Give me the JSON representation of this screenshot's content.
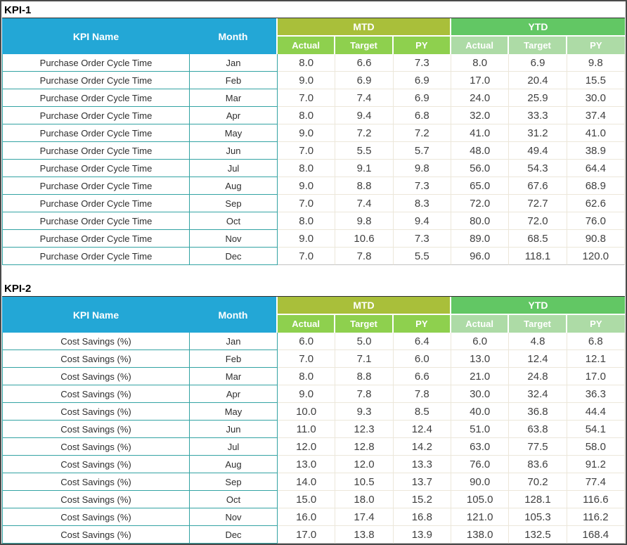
{
  "colors": {
    "header_blue": "#23a7d6",
    "mtd_group_green": "#a9bf3a",
    "mtd_sub_green": "#8ed04e",
    "ytd_group_green": "#62c764",
    "ytd_sub_green": "#addba6",
    "teal_border": "#33a3a3",
    "light_gridline": "#ece7da"
  },
  "tables": [
    {
      "title": "KPI-1",
      "columns": {
        "kpi_name": "KPI Name",
        "month": "Month"
      },
      "groups": [
        {
          "label": "MTD",
          "sub": [
            "Actual",
            "Target",
            "PY"
          ]
        },
        {
          "label": "YTD",
          "sub": [
            "Actual",
            "Target",
            "PY"
          ]
        }
      ],
      "rows": [
        {
          "kpi": "Purchase Order Cycle Time",
          "month": "Jan",
          "mtd": [
            "8.0",
            "6.6",
            "7.3"
          ],
          "ytd": [
            "8.0",
            "6.9",
            "9.8"
          ]
        },
        {
          "kpi": "Purchase Order Cycle Time",
          "month": "Feb",
          "mtd": [
            "9.0",
            "6.9",
            "6.9"
          ],
          "ytd": [
            "17.0",
            "20.4",
            "15.5"
          ]
        },
        {
          "kpi": "Purchase Order Cycle Time",
          "month": "Mar",
          "mtd": [
            "7.0",
            "7.4",
            "6.9"
          ],
          "ytd": [
            "24.0",
            "25.9",
            "30.0"
          ]
        },
        {
          "kpi": "Purchase Order Cycle Time",
          "month": "Apr",
          "mtd": [
            "8.0",
            "9.4",
            "6.8"
          ],
          "ytd": [
            "32.0",
            "33.3",
            "37.4"
          ]
        },
        {
          "kpi": "Purchase Order Cycle Time",
          "month": "May",
          "mtd": [
            "9.0",
            "7.2",
            "7.2"
          ],
          "ytd": [
            "41.0",
            "31.2",
            "41.0"
          ]
        },
        {
          "kpi": "Purchase Order Cycle Time",
          "month": "Jun",
          "mtd": [
            "7.0",
            "5.5",
            "5.7"
          ],
          "ytd": [
            "48.0",
            "49.4",
            "38.9"
          ]
        },
        {
          "kpi": "Purchase Order Cycle Time",
          "month": "Jul",
          "mtd": [
            "8.0",
            "9.1",
            "9.8"
          ],
          "ytd": [
            "56.0",
            "54.3",
            "64.4"
          ]
        },
        {
          "kpi": "Purchase Order Cycle Time",
          "month": "Aug",
          "mtd": [
            "9.0",
            "8.8",
            "7.3"
          ],
          "ytd": [
            "65.0",
            "67.6",
            "68.9"
          ]
        },
        {
          "kpi": "Purchase Order Cycle Time",
          "month": "Sep",
          "mtd": [
            "7.0",
            "7.4",
            "8.3"
          ],
          "ytd": [
            "72.0",
            "72.7",
            "62.6"
          ]
        },
        {
          "kpi": "Purchase Order Cycle Time",
          "month": "Oct",
          "mtd": [
            "8.0",
            "9.8",
            "9.4"
          ],
          "ytd": [
            "80.0",
            "72.0",
            "76.0"
          ]
        },
        {
          "kpi": "Purchase Order Cycle Time",
          "month": "Nov",
          "mtd": [
            "9.0",
            "10.6",
            "7.3"
          ],
          "ytd": [
            "89.0",
            "68.5",
            "90.8"
          ]
        },
        {
          "kpi": "Purchase Order Cycle Time",
          "month": "Dec",
          "mtd": [
            "7.0",
            "7.8",
            "5.5"
          ],
          "ytd": [
            "96.0",
            "118.1",
            "120.0"
          ]
        }
      ]
    },
    {
      "title": "KPI-2",
      "columns": {
        "kpi_name": "KPI Name",
        "month": "Month"
      },
      "groups": [
        {
          "label": "MTD",
          "sub": [
            "Actual",
            "Target",
            "PY"
          ]
        },
        {
          "label": "YTD",
          "sub": [
            "Actual",
            "Target",
            "PY"
          ]
        }
      ],
      "rows": [
        {
          "kpi": "Cost Savings (%)",
          "month": "Jan",
          "mtd": [
            "6.0",
            "5.0",
            "6.4"
          ],
          "ytd": [
            "6.0",
            "4.8",
            "6.8"
          ]
        },
        {
          "kpi": "Cost Savings (%)",
          "month": "Feb",
          "mtd": [
            "7.0",
            "7.1",
            "6.0"
          ],
          "ytd": [
            "13.0",
            "12.4",
            "12.1"
          ]
        },
        {
          "kpi": "Cost Savings (%)",
          "month": "Mar",
          "mtd": [
            "8.0",
            "8.8",
            "6.6"
          ],
          "ytd": [
            "21.0",
            "24.8",
            "17.0"
          ]
        },
        {
          "kpi": "Cost Savings (%)",
          "month": "Apr",
          "mtd": [
            "9.0",
            "7.8",
            "7.8"
          ],
          "ytd": [
            "30.0",
            "32.4",
            "36.3"
          ]
        },
        {
          "kpi": "Cost Savings (%)",
          "month": "May",
          "mtd": [
            "10.0",
            "9.3",
            "8.5"
          ],
          "ytd": [
            "40.0",
            "36.8",
            "44.4"
          ]
        },
        {
          "kpi": "Cost Savings (%)",
          "month": "Jun",
          "mtd": [
            "11.0",
            "12.3",
            "12.4"
          ],
          "ytd": [
            "51.0",
            "63.8",
            "54.1"
          ]
        },
        {
          "kpi": "Cost Savings (%)",
          "month": "Jul",
          "mtd": [
            "12.0",
            "12.8",
            "14.2"
          ],
          "ytd": [
            "63.0",
            "77.5",
            "58.0"
          ]
        },
        {
          "kpi": "Cost Savings (%)",
          "month": "Aug",
          "mtd": [
            "13.0",
            "12.0",
            "13.3"
          ],
          "ytd": [
            "76.0",
            "83.6",
            "91.2"
          ]
        },
        {
          "kpi": "Cost Savings (%)",
          "month": "Sep",
          "mtd": [
            "14.0",
            "10.5",
            "13.7"
          ],
          "ytd": [
            "90.0",
            "70.2",
            "77.4"
          ]
        },
        {
          "kpi": "Cost Savings (%)",
          "month": "Oct",
          "mtd": [
            "15.0",
            "18.0",
            "15.2"
          ],
          "ytd": [
            "105.0",
            "128.1",
            "116.6"
          ]
        },
        {
          "kpi": "Cost Savings (%)",
          "month": "Nov",
          "mtd": [
            "16.0",
            "17.4",
            "16.8"
          ],
          "ytd": [
            "121.0",
            "105.3",
            "116.2"
          ]
        },
        {
          "kpi": "Cost Savings (%)",
          "month": "Dec",
          "mtd": [
            "17.0",
            "13.8",
            "13.9"
          ],
          "ytd": [
            "138.0",
            "132.5",
            "168.4"
          ]
        }
      ]
    }
  ]
}
